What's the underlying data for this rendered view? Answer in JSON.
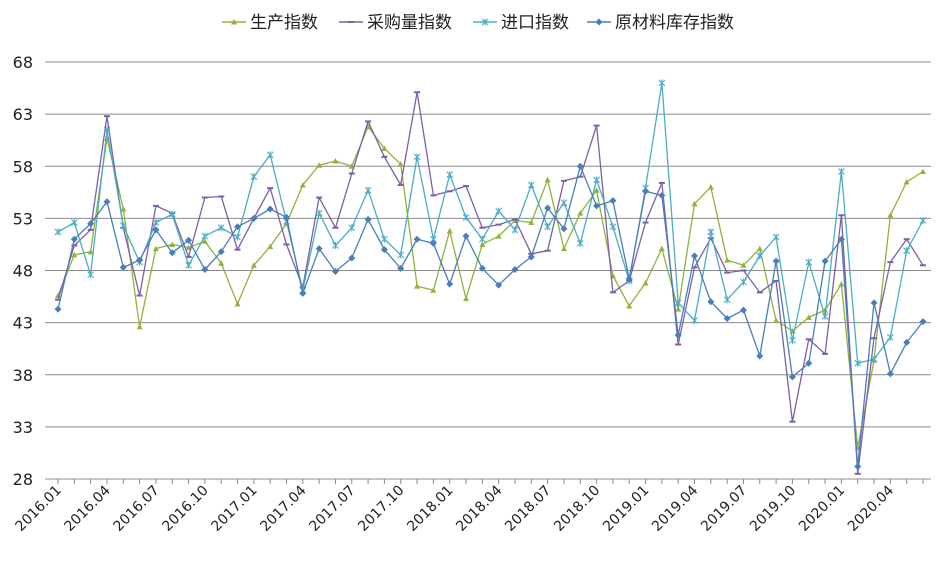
{
  "chart_data": {
    "type": "line",
    "title": "",
    "xlabel": "",
    "ylabel": "",
    "ylim": [
      28,
      68
    ],
    "yticks": [
      28,
      33,
      38,
      43,
      48,
      53,
      58,
      63,
      68
    ],
    "x_tick_labels": [
      "2016.01",
      "2016.04",
      "2016.07",
      "2016.10",
      "2017.01",
      "2017.04",
      "2017.07",
      "2017.10",
      "2018.01",
      "2018.04",
      "2018.07",
      "2018.10",
      "2019.01",
      "2019.04",
      "2019.07",
      "2019.10",
      "2020.01",
      "2020.04"
    ],
    "grid": "horizontal",
    "legend_position": "top",
    "categories": [
      "2016.01",
      "2016.02",
      "2016.03",
      "2016.04",
      "2016.05",
      "2016.06",
      "2016.07",
      "2016.08",
      "2016.09",
      "2016.10",
      "2016.11",
      "2016.12",
      "2017.01",
      "2017.02",
      "2017.03",
      "2017.04",
      "2017.05",
      "2017.06",
      "2017.07",
      "2017.08",
      "2017.09",
      "2017.10",
      "2017.11",
      "2017.12",
      "2018.01",
      "2018.02",
      "2018.03",
      "2018.04",
      "2018.05",
      "2018.06",
      "2018.07",
      "2018.08",
      "2018.09",
      "2018.10",
      "2018.11",
      "2018.12",
      "2019.01",
      "2019.02",
      "2019.03",
      "2019.04",
      "2019.05",
      "2019.06",
      "2019.07",
      "2019.08",
      "2019.09",
      "2019.10",
      "2019.11",
      "2019.12",
      "2020.01",
      "2020.02",
      "2020.03",
      "2020.04",
      "2020.05",
      "2020.06"
    ],
    "series": [
      {
        "name": "生产指数",
        "color": "#8fb33d",
        "marker": "triangle",
        "values": [
          45.6,
          49.5,
          49.8,
          60.7,
          53.9,
          42.6,
          50.1,
          50.5,
          50.2,
          50.8,
          48.7,
          44.8,
          48.5,
          50.3,
          52.5,
          56.2,
          58.1,
          58.5,
          58.0,
          61.8,
          59.7,
          58.2,
          46.5,
          46.1,
          51.8,
          45.3,
          50.5,
          51.3,
          52.8,
          52.6,
          56.7,
          50.1,
          53.5,
          55.7,
          47.5,
          44.6,
          46.8,
          50.1,
          44.3,
          54.4,
          56.0,
          49.0,
          48.5,
          50.1,
          43.2,
          42.2,
          43.5,
          44.2,
          46.7,
          31.0,
          39.4,
          53.3,
          56.5,
          57.5
        ]
      },
      {
        "name": "采购量指数",
        "color": "#7f5ea8",
        "marker": "dash",
        "values": [
          45.2,
          50.4,
          51.9,
          62.8,
          52.1,
          45.6,
          54.2,
          53.5,
          49.3,
          55.0,
          55.1,
          50.0,
          53.0,
          55.9,
          50.5,
          46.4,
          55.0,
          52.1,
          57.3,
          62.3,
          58.9,
          56.2,
          65.1,
          55.2,
          55.6,
          56.1,
          52.1,
          52.4,
          52.9,
          49.6,
          49.9,
          56.6,
          57.0,
          61.9,
          45.9,
          47.0,
          52.6,
          56.4,
          40.9,
          48.3,
          51.1,
          47.8,
          48.0,
          45.9,
          47.0,
          33.5,
          41.4,
          40.0,
          53.3,
          28.5,
          41.5,
          48.8,
          51.0,
          48.5
        ]
      },
      {
        "name": "进口指数",
        "color": "#4bacc6",
        "marker": "star",
        "values": [
          51.7,
          52.6,
          47.6,
          61.5,
          52.3,
          48.8,
          52.6,
          53.4,
          48.5,
          51.3,
          52.1,
          51.2,
          57.0,
          59.1,
          52.7,
          46.1,
          53.5,
          50.4,
          52.1,
          55.7,
          51.0,
          49.5,
          58.9,
          51.0,
          57.2,
          53.1,
          51.0,
          53.7,
          51.9,
          56.2,
          52.2,
          54.5,
          50.6,
          56.7,
          52.2,
          47.0,
          55.9,
          66.0,
          44.9,
          43.2,
          51.7,
          45.2,
          46.9,
          49.4,
          51.2,
          41.3,
          48.8,
          43.6,
          57.5,
          39.1,
          39.5,
          41.6,
          49.9,
          52.8
        ]
      },
      {
        "name": "原材料库存指数",
        "color": "#4a7ebb",
        "marker": "diamond",
        "values": [
          44.3,
          51.0,
          52.5,
          54.6,
          48.3,
          49.0,
          51.9,
          49.7,
          50.9,
          48.1,
          49.8,
          52.2,
          53.0,
          53.9,
          53.1,
          45.8,
          50.1,
          47.9,
          49.2,
          52.9,
          50.0,
          48.2,
          51.0,
          50.6,
          46.7,
          51.3,
          48.2,
          46.6,
          48.1,
          49.3,
          54.0,
          52.0,
          58.0,
          54.2,
          54.7,
          47.2,
          55.6,
          55.2,
          41.8,
          49.4,
          45.0,
          43.4,
          44.2,
          39.8,
          48.9,
          37.8,
          39.1,
          48.9,
          51.0,
          29.2,
          44.9,
          38.1,
          41.1,
          43.1
        ]
      }
    ]
  }
}
